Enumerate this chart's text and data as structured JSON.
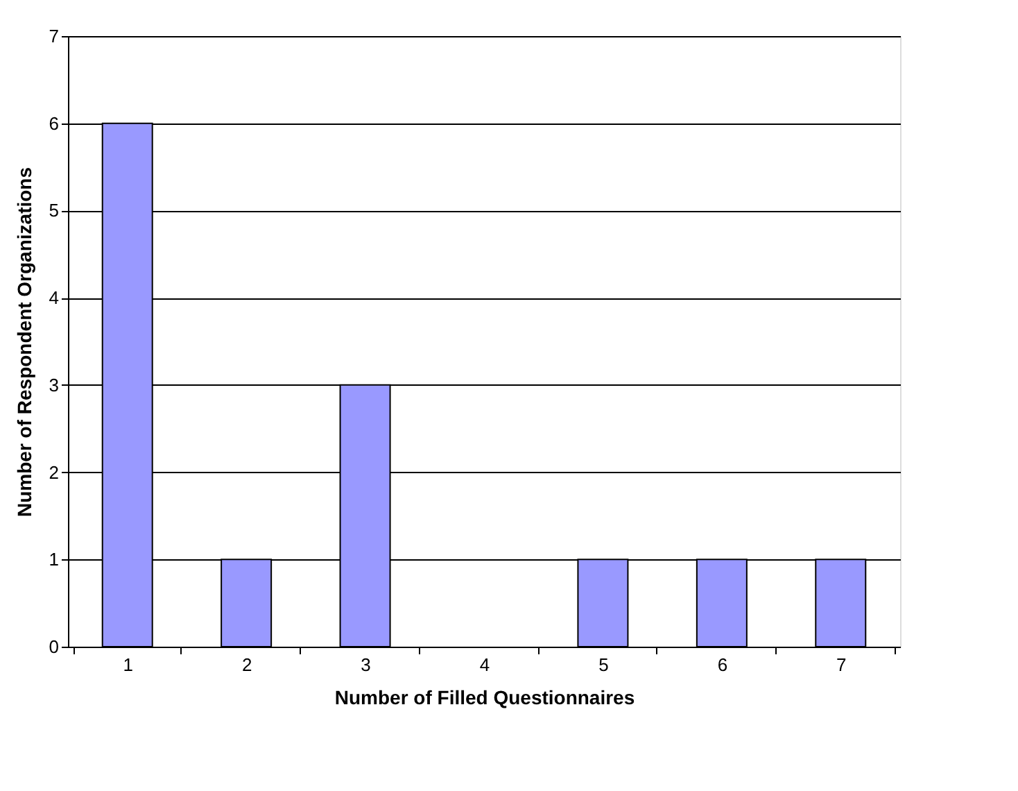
{
  "chart_data": {
    "type": "bar",
    "xlabel": "Number of Filled Questionnaires",
    "ylabel": "Number of Respondent Organizations",
    "categories": [
      "1",
      "2",
      "3",
      "4",
      "5",
      "6",
      "7"
    ],
    "values": [
      6,
      1,
      3,
      0,
      1,
      1,
      1
    ],
    "color": "#9999ff",
    "ylim": [
      0,
      7
    ],
    "yticks": [
      0,
      1,
      2,
      3,
      4,
      5,
      6,
      7
    ],
    "grid": "y"
  }
}
